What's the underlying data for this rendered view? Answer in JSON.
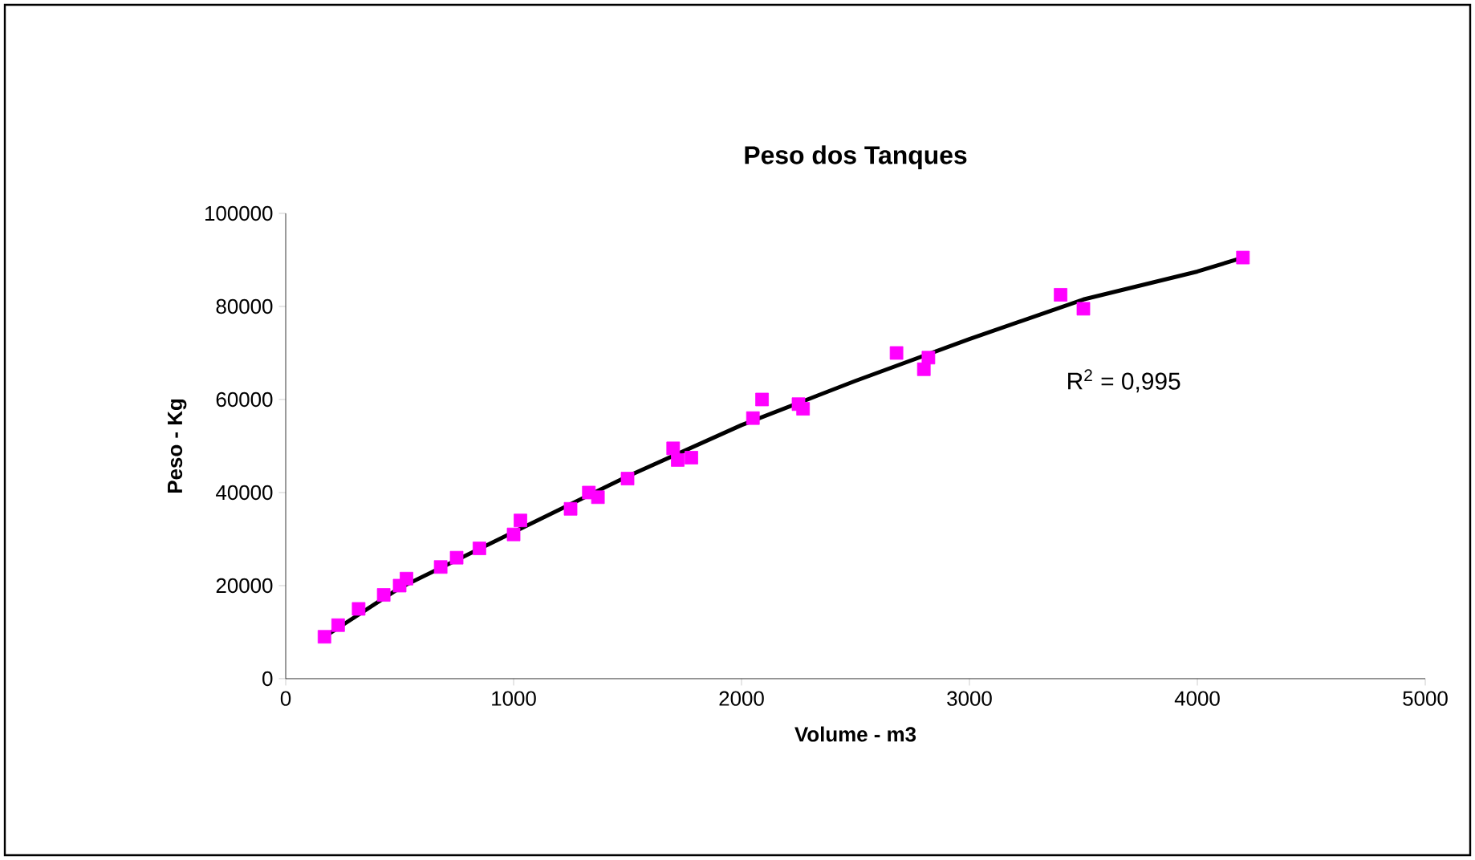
{
  "chart_data": {
    "type": "scatter",
    "title": "Peso dos Tanques",
    "xlabel": "Volume  - m3",
    "ylabel": "Peso - Kg",
    "xlim": [
      0,
      5000
    ],
    "xticks": [
      0,
      1000,
      2000,
      3000,
      4000,
      5000
    ],
    "ylim": [
      0,
      100000
    ],
    "yticks": [
      0,
      20000,
      40000,
      60000,
      80000,
      100000
    ],
    "grid": false,
    "series": [
      {
        "color": "#ff00ff",
        "marker": "square",
        "x": [
          170,
          230,
          320,
          430,
          500,
          530,
          680,
          750,
          850,
          1000,
          1030,
          1250,
          1330,
          1370,
          1500,
          1700,
          1720,
          1780,
          2050,
          2090,
          2250,
          2270,
          2680,
          2800,
          2820,
          3400,
          3500,
          4200
        ],
        "values": [
          9000,
          11500,
          15000,
          18000,
          20000,
          21500,
          24000,
          26000,
          28000,
          31000,
          34000,
          36500,
          40000,
          39000,
          43000,
          49500,
          47000,
          47500,
          56000,
          60000,
          59000,
          58000,
          70000,
          66500,
          69000,
          82500,
          79500,
          90500
        ]
      },
      {
        "type": "line",
        "color": "#000000",
        "marker": "none",
        "line_style": "solid",
        "x": [
          170,
          500,
          1000,
          1500,
          2000,
          2500,
          3000,
          3500,
          4000,
          4200
        ],
        "values": [
          9000,
          19500,
          31500,
          43500,
          54500,
          64000,
          73000,
          81500,
          87500,
          90500
        ]
      }
    ],
    "annotations": [
      "R$^{2}$ = 0,995"
    ]
  }
}
